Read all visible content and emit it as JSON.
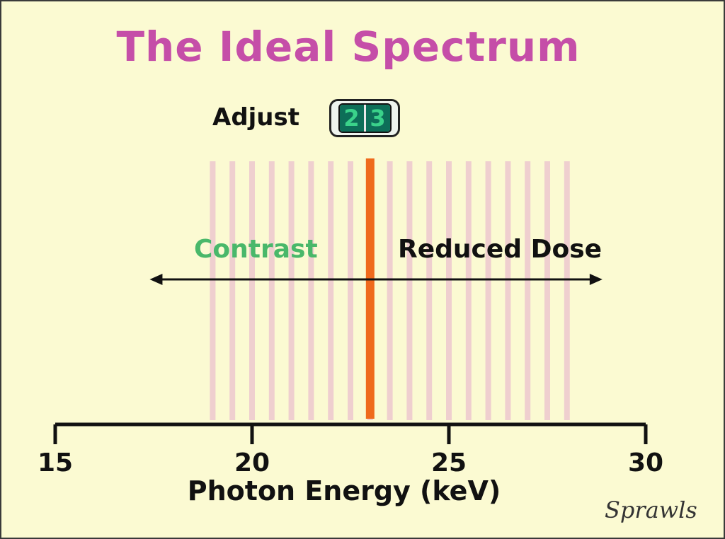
{
  "title": "The Ideal Spectrum",
  "adjust": {
    "label": "Adjust",
    "digits": [
      "2",
      "3"
    ]
  },
  "labels": {
    "left": "Contrast",
    "right": "Reduced Dose"
  },
  "axis": {
    "title": "Photon Energy (keV)",
    "min": 15,
    "max": 30,
    "ticks": [
      "15",
      "20",
      "25",
      "30"
    ]
  },
  "spectrum": {
    "from": 19,
    "to": 28,
    "stripe_step": 0.5,
    "marker_value": 23
  },
  "arrow": {
    "from": 17.4,
    "to": 28.9
  },
  "signature": "Sprawls",
  "colors": {
    "background": "#fbfad2",
    "title": "#c54ea8",
    "stripe": "#efcfcf",
    "marker": "#ef6a1c",
    "contrast": "#49b86a",
    "text": "#111111"
  }
}
